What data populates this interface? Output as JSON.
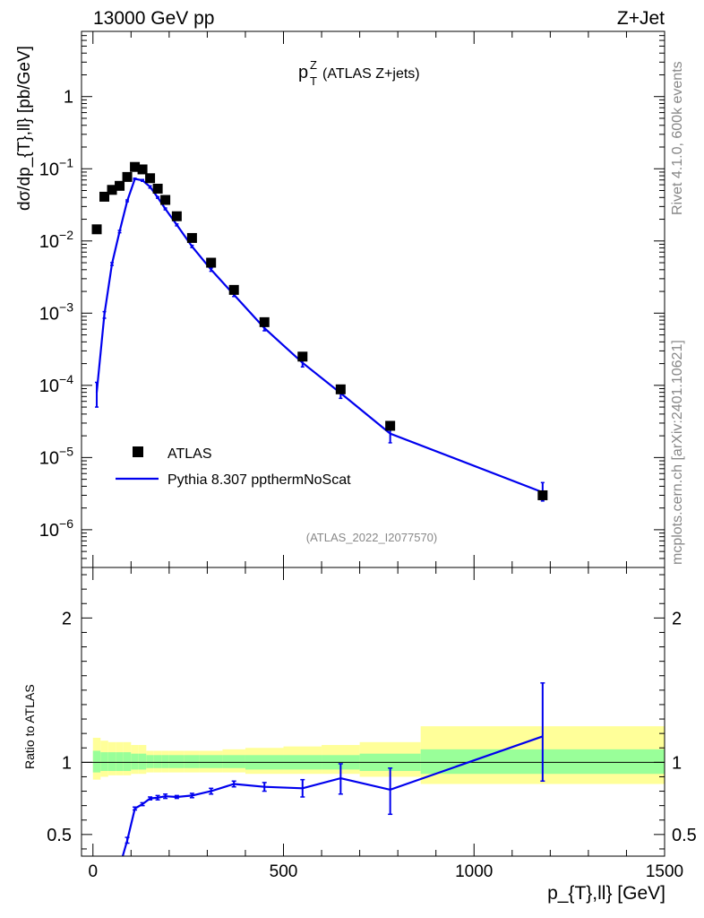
{
  "header": {
    "left": "13000 GeV pp",
    "right": "Z+Jet"
  },
  "side_labels": {
    "rivet": "Rivet 4.1.0,  600k events",
    "mcplots": "mcplots.cern.ch [arXiv:2401.10621]"
  },
  "chart_data": [
    {
      "type": "scatter",
      "title_main": "p",
      "title_sup": "Z",
      "title_sub": "T",
      "title_rest": " (ATLAS Z+jets)",
      "ylabel": "dσ/dp_{T},ll} [pb/GeV]",
      "yscale": "log",
      "ylim": [
        3e-07,
        8
      ],
      "xlim": [
        -30,
        1500
      ],
      "analysis_id": "(ATLAS_2022_I2077570)",
      "y_tick_labels": [
        {
          "value": 1,
          "base": "1",
          "exp": ""
        },
        {
          "value": 0.1,
          "base": "10",
          "exp": "−1"
        },
        {
          "value": 0.01,
          "base": "10",
          "exp": "−2"
        },
        {
          "value": 0.001,
          "base": "10",
          "exp": "−3"
        },
        {
          "value": 0.0001,
          "base": "10",
          "exp": "−4"
        },
        {
          "value": 1e-05,
          "base": "10",
          "exp": "−5"
        },
        {
          "value": 1e-06,
          "base": "10",
          "exp": "−6"
        }
      ],
      "legend": [
        {
          "name": "ATLAS",
          "marker": "square",
          "color": "#000000"
        },
        {
          "name": "Pythia 8.307 ppthermNoScat",
          "marker": "line",
          "color": "#0000ee"
        }
      ],
      "series": [
        {
          "name": "ATLAS",
          "color": "#000000",
          "points": [
            {
              "x": 10,
              "y": 0.0145
            },
            {
              "x": 30,
              "y": 0.041
            },
            {
              "x": 50,
              "y": 0.051
            },
            {
              "x": 70,
              "y": 0.058
            },
            {
              "x": 90,
              "y": 0.077
            },
            {
              "x": 110,
              "y": 0.106
            },
            {
              "x": 130,
              "y": 0.098
            },
            {
              "x": 150,
              "y": 0.074
            },
            {
              "x": 170,
              "y": 0.053
            },
            {
              "x": 190,
              "y": 0.037
            },
            {
              "x": 220,
              "y": 0.022
            },
            {
              "x": 260,
              "y": 0.011
            },
            {
              "x": 310,
              "y": 0.005
            },
            {
              "x": 370,
              "y": 0.0021
            },
            {
              "x": 450,
              "y": 0.00075
            },
            {
              "x": 550,
              "y": 0.00025
            },
            {
              "x": 650,
              "y": 8.8e-05
            },
            {
              "x": 780,
              "y": 2.75e-05
            },
            {
              "x": 1180,
              "y": 3e-06
            }
          ]
        },
        {
          "name": "Pythia 8.307 ppthermNoScat",
          "color": "#0000ee",
          "points": [
            {
              "x": 10,
              "y": 8e-05,
              "lo": 5e-05,
              "hi": 0.00011
            },
            {
              "x": 30,
              "y": 0.00095,
              "lo": 0.00085,
              "hi": 0.00105
            },
            {
              "x": 50,
              "y": 0.0048,
              "lo": 0.0046,
              "hi": 0.005
            },
            {
              "x": 70,
              "y": 0.0135,
              "lo": 0.013,
              "hi": 0.014
            },
            {
              "x": 90,
              "y": 0.036,
              "lo": 0.035,
              "hi": 0.037
            },
            {
              "x": 110,
              "y": 0.0725,
              "lo": 0.071,
              "hi": 0.074
            },
            {
              "x": 130,
              "y": 0.069,
              "lo": 0.067,
              "hi": 0.071
            },
            {
              "x": 150,
              "y": 0.056,
              "lo": 0.054,
              "hi": 0.058
            },
            {
              "x": 170,
              "y": 0.04,
              "lo": 0.039,
              "hi": 0.041
            },
            {
              "x": 190,
              "y": 0.0278,
              "lo": 0.027,
              "hi": 0.0286
            },
            {
              "x": 220,
              "y": 0.0167,
              "lo": 0.0162,
              "hi": 0.0172
            },
            {
              "x": 260,
              "y": 0.0084,
              "lo": 0.0081,
              "hi": 0.0087
            },
            {
              "x": 310,
              "y": 0.004,
              "lo": 0.0038,
              "hi": 0.0042
            },
            {
              "x": 370,
              "y": 0.0018,
              "lo": 0.0017,
              "hi": 0.0019
            },
            {
              "x": 450,
              "y": 0.00062,
              "lo": 0.00057,
              "hi": 0.00067
            },
            {
              "x": 550,
              "y": 0.000205,
              "lo": 0.00018,
              "hi": 0.00023
            },
            {
              "x": 650,
              "y": 7.8e-05,
              "lo": 6.6e-05,
              "hi": 9e-05
            },
            {
              "x": 780,
              "y": 2.15e-05,
              "lo": 1.6e-05,
              "hi": 2.7e-05
            },
            {
              "x": 1180,
              "y": 3.3e-06,
              "lo": 2.5e-06,
              "hi": 4.5e-06
            }
          ]
        }
      ]
    },
    {
      "type": "line",
      "ylabel": "Ratio to ATLAS",
      "xlabel": "p_{T},ll} [GeV]",
      "xlim": [
        -30,
        1500
      ],
      "ylim": [
        0.35,
        2.35
      ],
      "x_ticks": [
        0,
        500,
        1000,
        1500
      ],
      "y_ticks": [
        0.5,
        1,
        2
      ],
      "reference": 1,
      "bands": [
        {
          "x0": 0,
          "x1": 20,
          "inner": [
            0.93,
            1.08
          ],
          "outer": [
            0.88,
            1.17
          ]
        },
        {
          "x0": 20,
          "x1": 40,
          "inner": [
            0.94,
            1.07
          ],
          "outer": [
            0.9,
            1.15
          ]
        },
        {
          "x0": 40,
          "x1": 60,
          "inner": [
            0.94,
            1.07
          ],
          "outer": [
            0.91,
            1.14
          ]
        },
        {
          "x0": 60,
          "x1": 80,
          "inner": [
            0.94,
            1.07
          ],
          "outer": [
            0.91,
            1.14
          ]
        },
        {
          "x0": 80,
          "x1": 100,
          "inner": [
            0.94,
            1.07
          ],
          "outer": [
            0.91,
            1.14
          ]
        },
        {
          "x0": 100,
          "x1": 120,
          "inner": [
            0.95,
            1.06
          ],
          "outer": [
            0.92,
            1.12
          ]
        },
        {
          "x0": 120,
          "x1": 140,
          "inner": [
            0.95,
            1.06
          ],
          "outer": [
            0.92,
            1.12
          ]
        },
        {
          "x0": 140,
          "x1": 160,
          "inner": [
            0.96,
            1.05
          ],
          "outer": [
            0.93,
            1.08
          ]
        },
        {
          "x0": 160,
          "x1": 180,
          "inner": [
            0.96,
            1.05
          ],
          "outer": [
            0.93,
            1.08
          ]
        },
        {
          "x0": 180,
          "x1": 200,
          "inner": [
            0.96,
            1.05
          ],
          "outer": [
            0.93,
            1.08
          ]
        },
        {
          "x0": 200,
          "x1": 240,
          "inner": [
            0.96,
            1.05
          ],
          "outer": [
            0.93,
            1.08
          ]
        },
        {
          "x0": 240,
          "x1": 280,
          "inner": [
            0.96,
            1.05
          ],
          "outer": [
            0.93,
            1.08
          ]
        },
        {
          "x0": 280,
          "x1": 340,
          "inner": [
            0.96,
            1.05
          ],
          "outer": [
            0.93,
            1.08
          ]
        },
        {
          "x0": 340,
          "x1": 400,
          "inner": [
            0.96,
            1.05
          ],
          "outer": [
            0.93,
            1.09
          ]
        },
        {
          "x0": 400,
          "x1": 500,
          "inner": [
            0.95,
            1.05
          ],
          "outer": [
            0.92,
            1.1
          ]
        },
        {
          "x0": 500,
          "x1": 600,
          "inner": [
            0.95,
            1.05
          ],
          "outer": [
            0.92,
            1.11
          ]
        },
        {
          "x0": 600,
          "x1": 700,
          "inner": [
            0.95,
            1.05
          ],
          "outer": [
            0.92,
            1.12
          ]
        },
        {
          "x0": 700,
          "x1": 860,
          "inner": [
            0.94,
            1.06
          ],
          "outer": [
            0.9,
            1.14
          ]
        },
        {
          "x0": 860,
          "x1": 1500,
          "inner": [
            0.92,
            1.09
          ],
          "outer": [
            0.85,
            1.25
          ]
        }
      ],
      "series": [
        {
          "name": "Pythia 8.307 ppthermNoScat / ATLAS",
          "color": "#0000ee",
          "points": [
            {
              "x": 90,
              "y": 0.46,
              "lo": 0.44,
              "hi": 0.48
            },
            {
              "x": 110,
              "y": 0.68,
              "lo": 0.67,
              "hi": 0.69
            },
            {
              "x": 130,
              "y": 0.71,
              "lo": 0.7,
              "hi": 0.72
            },
            {
              "x": 150,
              "y": 0.75,
              "lo": 0.74,
              "hi": 0.76
            },
            {
              "x": 170,
              "y": 0.755,
              "lo": 0.74,
              "hi": 0.77
            },
            {
              "x": 190,
              "y": 0.765,
              "lo": 0.75,
              "hi": 0.78
            },
            {
              "x": 220,
              "y": 0.76,
              "lo": 0.75,
              "hi": 0.77
            },
            {
              "x": 260,
              "y": 0.77,
              "lo": 0.755,
              "hi": 0.785
            },
            {
              "x": 310,
              "y": 0.8,
              "lo": 0.78,
              "hi": 0.82
            },
            {
              "x": 370,
              "y": 0.85,
              "lo": 0.83,
              "hi": 0.87
            },
            {
              "x": 450,
              "y": 0.83,
              "lo": 0.8,
              "hi": 0.86
            },
            {
              "x": 550,
              "y": 0.82,
              "lo": 0.76,
              "hi": 0.88
            },
            {
              "x": 650,
              "y": 0.89,
              "lo": 0.78,
              "hi": 0.99
            },
            {
              "x": 780,
              "y": 0.81,
              "lo": 0.64,
              "hi": 0.96
            },
            {
              "x": 1180,
              "y": 1.18,
              "lo": 0.87,
              "hi": 1.55
            }
          ]
        }
      ]
    }
  ]
}
